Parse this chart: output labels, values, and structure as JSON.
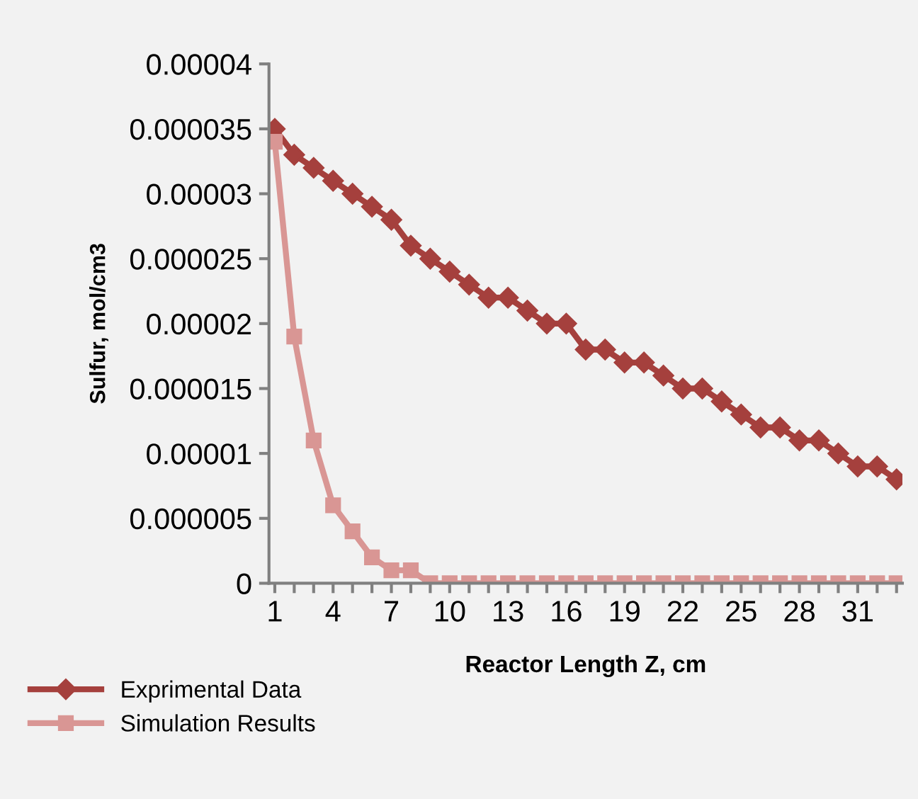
{
  "chart_data": {
    "type": "line",
    "xlabel": "Reactor Length Z, cm",
    "ylabel": "Sulfur, mol/cm3",
    "categories": [
      "1",
      null,
      null,
      "4",
      null,
      null,
      "7",
      null,
      null,
      "10",
      null,
      null,
      "13",
      null,
      null,
      "16",
      null,
      null,
      "19",
      null,
      null,
      "22",
      null,
      null,
      "25",
      null,
      null,
      "28",
      null,
      null,
      "31",
      null,
      null
    ],
    "series": [
      {
        "name": "Exprimental Data",
        "color": "#a5403d",
        "marker": "diamond",
        "values": [
          3.5e-05,
          3.3e-05,
          3.2e-05,
          3.1e-05,
          3e-05,
          2.9e-05,
          2.8e-05,
          2.6e-05,
          2.5e-05,
          2.4e-05,
          2.3e-05,
          2.2e-05,
          2.2e-05,
          2.1e-05,
          2e-05,
          2e-05,
          1.8e-05,
          1.8e-05,
          1.7e-05,
          1.7e-05,
          1.6e-05,
          1.5e-05,
          1.5e-05,
          1.4e-05,
          1.3e-05,
          1.2e-05,
          1.2e-05,
          1.1e-05,
          1.1e-05,
          1e-05,
          9e-06,
          9e-06,
          8e-06
        ]
      },
      {
        "name": "Simulation Results",
        "color": "#d99694",
        "marker": "square",
        "values": [
          3.4e-05,
          1.9e-05,
          1.1e-05,
          6e-06,
          4e-06,
          2e-06,
          1e-06,
          1e-06,
          0,
          0,
          0,
          0,
          0,
          0,
          0,
          0,
          0,
          0,
          0,
          0,
          0,
          0,
          0,
          0,
          0,
          0,
          0,
          0,
          0,
          0,
          0,
          0,
          0
        ]
      }
    ],
    "ylim": [
      0,
      4e-05
    ],
    "yticks": [
      0,
      {
        "value": 5e-06,
        "label": "0.000005"
      },
      {
        "value": 1e-05,
        "label": "0.00001"
      },
      {
        "value": 1.5e-05,
        "label": "0.000015"
      },
      {
        "value": 2e-05,
        "label": "0.00002"
      },
      {
        "value": 2.5e-05,
        "label": "0.000025"
      },
      {
        "value": 3e-05,
        "label": "0.00003"
      },
      {
        "value": 3.5e-05,
        "label": "0.000035"
      },
      {
        "value": 4e-05,
        "label": "0.00004"
      }
    ],
    "grid": false,
    "legend": "bottom left"
  }
}
